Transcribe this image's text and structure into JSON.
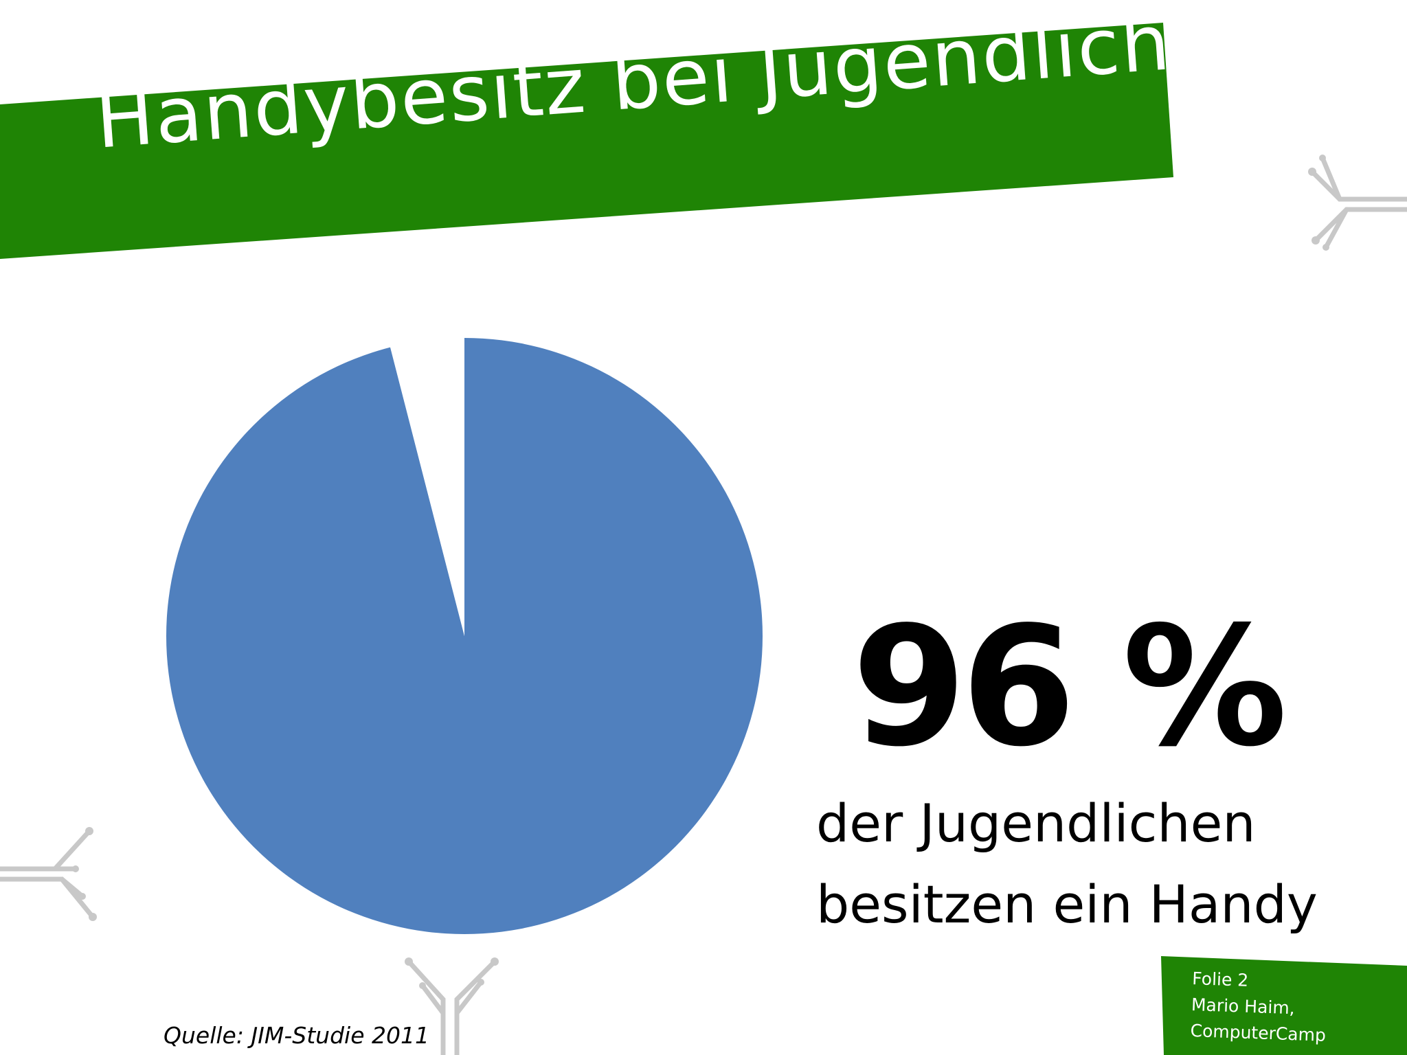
{
  "slide": {
    "title": "Handybesitz bei Jugendlichen",
    "big_value": "96 %",
    "caption_line1": "der Jugendlichen",
    "caption_line2": "besitzen ein Handy",
    "source": "Quelle: JIM-Studie 2011",
    "footer_line1": "Folie 2",
    "footer_line2": "Mario Haim,",
    "footer_line3": "ComputerCamp"
  },
  "colors": {
    "banner_green": "#1F8405",
    "pie_blue": "#5080BE",
    "deco_gray": "#C8C8C8"
  },
  "chart_data": {
    "type": "pie",
    "slices": [
      {
        "label": "besitzen ein Handy",
        "value": 96,
        "color": "#5080BE"
      },
      {
        "label": "",
        "value": 4,
        "color": "#FFFFFF"
      }
    ]
  }
}
